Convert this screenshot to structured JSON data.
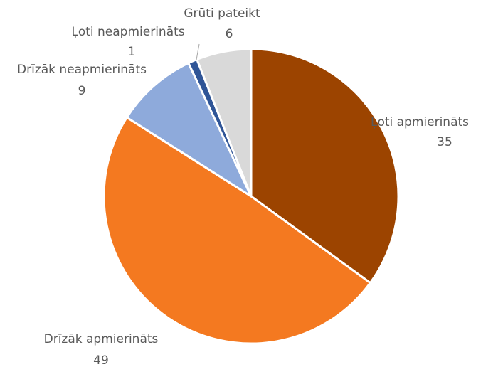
{
  "chart_data": {
    "type": "pie",
    "categories": [
      "Ļoti apmierināts",
      "Drīzāk apmierināts",
      "Drīzāk neapmierināts",
      "Ļoti neapmierināts",
      "Grūti pateikt"
    ],
    "values": [
      35,
      49,
      9,
      1,
      6
    ],
    "colors": [
      "#9c4400",
      "#f47920",
      "#8eaadb",
      "#2f5597",
      "#d9d9d9"
    ]
  }
}
